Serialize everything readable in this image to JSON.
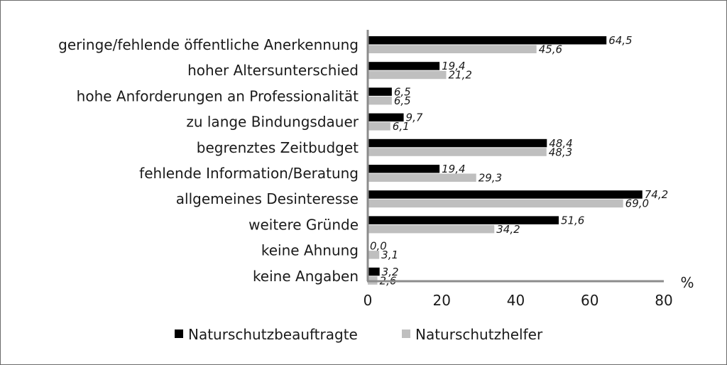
{
  "chart_data": {
    "type": "bar",
    "orientation": "horizontal",
    "categories": [
      "geringe/fehlende öffentliche Anerkennung",
      "hoher Altersunterschied",
      "hohe Anforderungen an Professionalität",
      "zu lange Bindungsdauer",
      "begrenztes Zeitbudget",
      "fehlende Information/Beratung",
      "allgemeines Desinteresse",
      "weitere Gründe",
      "keine Ahnung",
      "keine Angaben"
    ],
    "series": [
      {
        "name": "Naturschutzbeauftragte",
        "color": "#000000",
        "values": [
          64.5,
          19.4,
          6.5,
          9.7,
          48.4,
          19.4,
          74.2,
          51.6,
          0.0,
          3.2
        ],
        "labels": [
          "64,5",
          "19,4",
          "6,5",
          "9,7",
          "48,4",
          "19,4",
          "74,2",
          "51,6",
          "0,0",
          "3,2"
        ]
      },
      {
        "name": "Naturschutzhelfer",
        "color": "#bfbfbf",
        "values": [
          45.6,
          21.2,
          6.5,
          6.1,
          48.3,
          29.3,
          69.0,
          34.2,
          3.1,
          2.6
        ],
        "labels": [
          "45,6",
          "21,2",
          "6,5",
          "6,1",
          "48,3",
          "29,3",
          "69,0",
          "34,2",
          "3,1",
          "2,6"
        ]
      }
    ],
    "xlim": [
      0,
      80
    ],
    "xticks": [
      "0",
      "20",
      "40",
      "60",
      "80"
    ],
    "xunit": "%",
    "grid": false,
    "legend_position": "bottom"
  }
}
